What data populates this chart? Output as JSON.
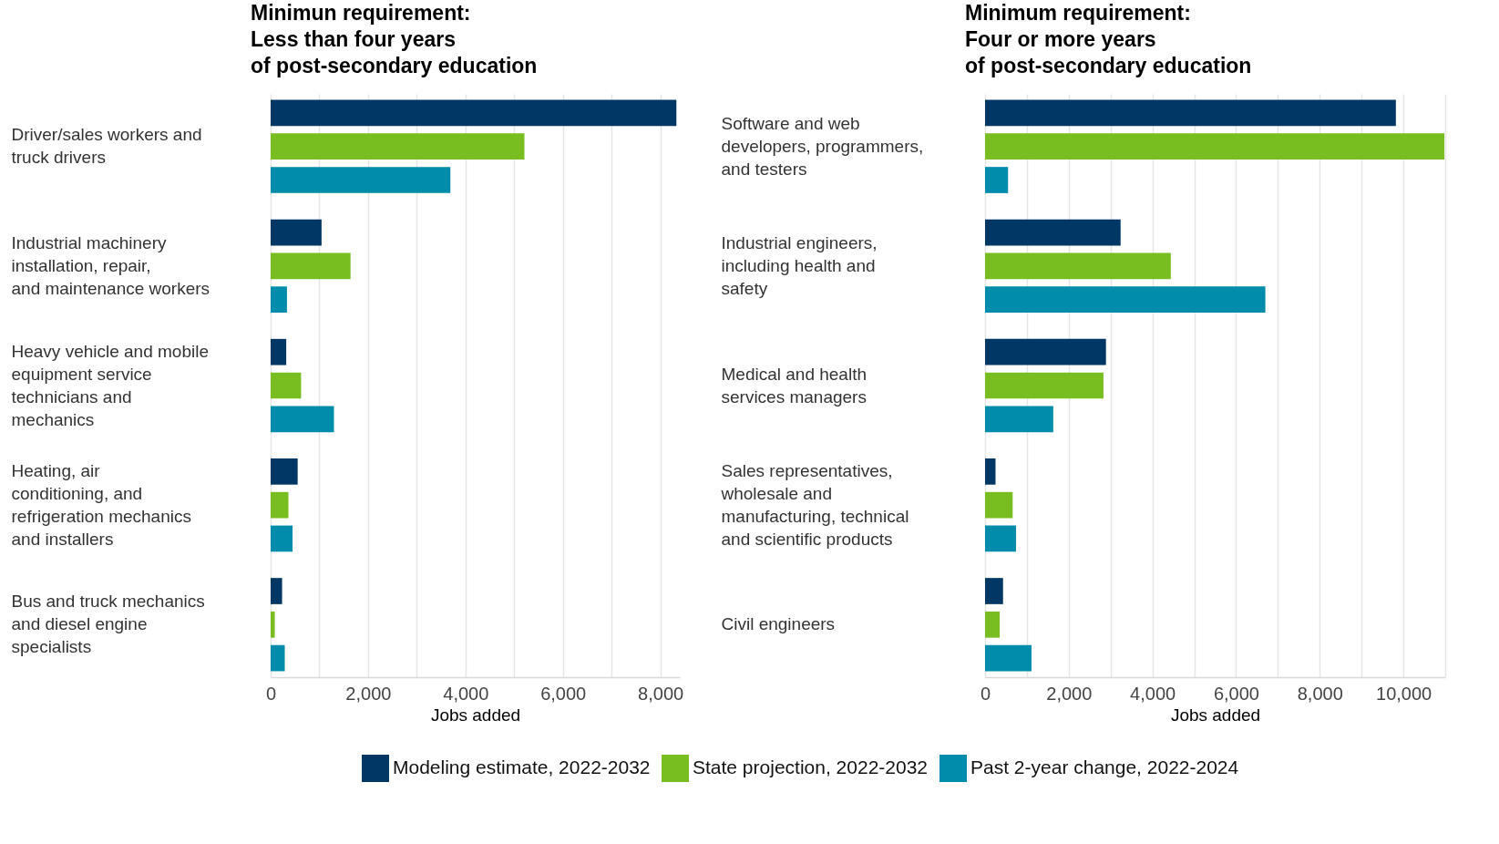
{
  "chart_data": [
    {
      "type": "bar",
      "orientation": "horizontal",
      "title": "Minimun requirement:\nLess than four years\nof post-secondary education",
      "xlabel": "Jobs added",
      "categories": [
        "Driver/sales workers and\ntruck drivers",
        "Industrial machinery\ninstallation, repair,\nand maintenance workers",
        "Heavy vehicle and mobile\nequipment service\ntechnicians and\nmechanics",
        "Heating, air\nconditioning, and\nrefrigeration mechanics\nand installers",
        "Bus and truck mechanics\nand diesel engine\nspecialists"
      ],
      "series": [
        {
          "name": "Modeling estimate, 2022-2032",
          "color": "#003764",
          "values": [
            8330,
            1045,
            320,
            555,
            235
          ]
        },
        {
          "name": "State projection, 2022-2032",
          "color": "#78be20",
          "values": [
            5210,
            1640,
            625,
            365,
            85
          ]
        },
        {
          "name": "Past 2-year change, 2022-2024",
          "color": "#008caa",
          "values": [
            3690,
            335,
            1300,
            450,
            290
          ]
        }
      ],
      "xlim": [
        0,
        8400
      ],
      "xticks": [
        0,
        {
          "value": 1000,
          "label": null
        },
        {
          "value": 2000,
          "label": "2,000"
        },
        {
          "value": 3000,
          "label": null
        },
        {
          "value": 4000,
          "label": "4,000"
        },
        {
          "value": 5000,
          "label": null
        },
        {
          "value": 6000,
          "label": "6,000"
        },
        {
          "value": 7000,
          "label": null
        },
        {
          "value": 8000,
          "label": "8,000"
        }
      ],
      "grid": "x",
      "legend": "bottom"
    },
    {
      "type": "bar",
      "orientation": "horizontal",
      "title": "Minimum requirement:\nFour or more years\nof post-secondary education",
      "xlabel": "Jobs added",
      "categories": [
        "Software and web\ndevelopers, programmers,\nand testers",
        "Industrial engineers,\nincluding health and\nsafety",
        "Medical and health\nservices managers",
        "Sales representatives,\nwholesale and\nmanufacturing, technical\nand scientific products",
        "Civil engineers"
      ],
      "series": [
        {
          "color": "#003764",
          "values": [
            9820,
            3240,
            2890,
            250,
            430
          ]
        },
        {
          "color": "#78be20",
          "values": [
            10980,
            4440,
            2830,
            660,
            350
          ]
        },
        {
          "color": "#008caa",
          "values": [
            550,
            6700,
            1630,
            740,
            1110
          ]
        }
      ],
      "xlim": [
        0,
        11000
      ],
      "xticks": [
        0,
        {
          "value": 1000,
          "label": null
        },
        {
          "value": 2000,
          "label": "2,000"
        },
        {
          "value": 3000,
          "label": null
        },
        {
          "value": 4000,
          "label": "4,000"
        },
        {
          "value": 5000,
          "label": null
        },
        {
          "value": 6000,
          "label": "6,000"
        },
        {
          "value": 7000,
          "label": null
        },
        {
          "value": 8000,
          "label": "8,000"
        },
        {
          "value": 9000,
          "label": null
        },
        {
          "value": 10000,
          "label": "10,000"
        },
        {
          "value": 11000,
          "label": null
        }
      ],
      "grid": "x"
    }
  ]
}
